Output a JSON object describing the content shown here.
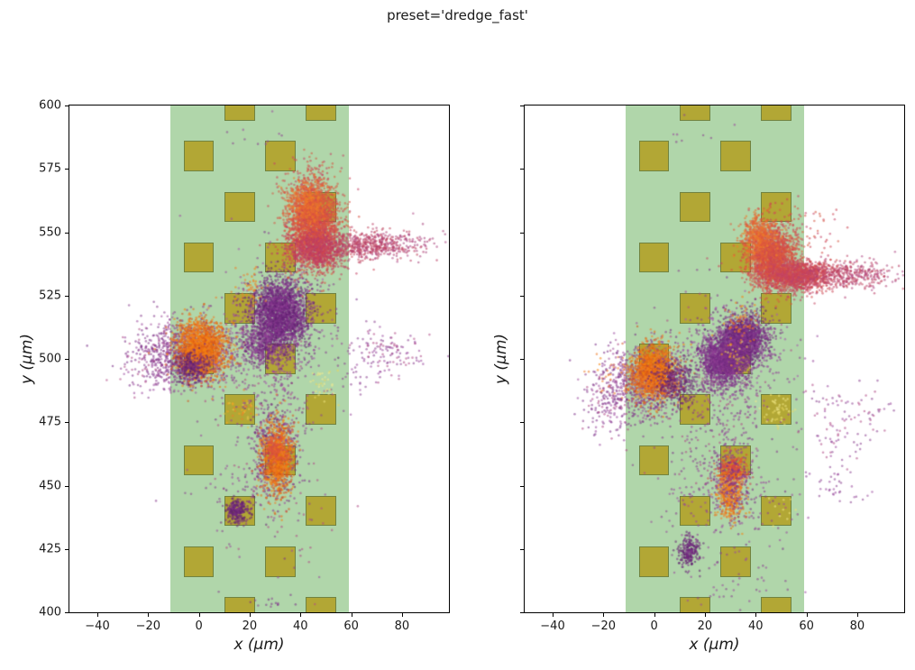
{
  "title": "preset='dredge_fast'",
  "colors": {
    "background": "#ffffff",
    "band": "#b0d6aa",
    "contact_fill": "#b2a735",
    "contact_edge": "#71823f",
    "spine": "#000000"
  },
  "chart_data": [
    {
      "type": "scatter",
      "panel": "left",
      "title": "",
      "xlabel": "x (μm)",
      "ylabel": "y (μm)",
      "xlim": [
        -51,
        98.5
      ],
      "ylim": [
        400,
        600
      ],
      "xticks": [
        -40,
        -20,
        0,
        20,
        40,
        60,
        80
      ],
      "yticks": [
        400,
        425,
        450,
        475,
        500,
        525,
        550,
        575,
        600
      ],
      "show_ytick_labels": true,
      "grid": false,
      "probe": {
        "band_x": [
          -11.4,
          59.2
        ],
        "contact_size": 12,
        "contacts": [
          [
            16,
            600
          ],
          [
            48,
            600
          ],
          [
            0,
            580
          ],
          [
            32,
            580
          ],
          [
            16,
            560
          ],
          [
            48,
            560
          ],
          [
            0,
            540
          ],
          [
            32,
            540
          ],
          [
            16,
            520
          ],
          [
            48,
            520
          ],
          [
            0,
            500
          ],
          [
            32,
            500
          ],
          [
            16,
            480
          ],
          [
            48,
            480
          ],
          [
            0,
            460
          ],
          [
            32,
            460
          ],
          [
            16,
            440
          ],
          [
            48,
            440
          ],
          [
            0,
            420
          ],
          [
            32,
            420
          ],
          [
            16,
            400
          ],
          [
            48,
            400
          ]
        ]
      },
      "clusters": [
        {
          "name": "band-sprinkle-mid",
          "cx": 30,
          "cy": 478,
          "sx": 7,
          "sy": 22,
          "n": 300,
          "colors": [
            "#8b4190",
            "#9a4a9e",
            "#7c2f88",
            "#b04a86"
          ]
        },
        {
          "name": "band-sprinkle-wide",
          "cx": 25,
          "cy": 470,
          "sx": 14,
          "sy": 30,
          "n": 150,
          "colors": [
            "#8b4190",
            "#9a4a9e",
            "#b04a86"
          ]
        },
        {
          "name": "band-sprinkle-upper",
          "cx": 38,
          "cy": 515,
          "sx": 10,
          "sy": 14,
          "n": 80,
          "colors": [
            "#8b4190",
            "#9a4a9e",
            "#7c2f88"
          ]
        },
        {
          "name": "band-sprinkle-low",
          "cx": 18,
          "cy": 448,
          "sx": 8,
          "sy": 6,
          "n": 40,
          "colors": [
            "#8b4190",
            "#9a4a9e"
          ]
        },
        {
          "name": "top-sparse",
          "cx": 24,
          "cy": 588,
          "sx": 10,
          "sy": 6,
          "n": 10,
          "colors": [
            "#8b4190",
            "#9a4a9e"
          ]
        },
        {
          "name": "bottom-arc",
          "cx": 30,
          "cy": 404,
          "sx": 4.5,
          "sy": 2,
          "n": 14,
          "colors": [
            "#8b4190",
            "#7c2f88"
          ]
        },
        {
          "name": "right-cloud",
          "cx": 73,
          "cy": 503,
          "sx": 7,
          "sy": 5,
          "n": 120,
          "colors": [
            "#8b4190",
            "#9a4a9e",
            "#b04a86"
          ]
        },
        {
          "name": "right-cloud-inner",
          "cx": 63,
          "cy": 495,
          "sx": 4,
          "sy": 6,
          "n": 30,
          "colors": [
            "#8b4190",
            "#9a4a9e"
          ]
        },
        {
          "name": "unit1-left-fringe",
          "cx": -16,
          "cy": 501,
          "sx": 7,
          "sy": 7,
          "n": 230,
          "colors": [
            "#8b4190",
            "#9a4a9e",
            "#7c2f88",
            "#b04a86"
          ]
        },
        {
          "name": "unit1-purple-fringe",
          "cx": -3,
          "cy": 502,
          "sx": 10,
          "sy": 7,
          "n": 800,
          "colors": [
            "#8b3c90",
            "#7a2d85",
            "#a4539f"
          ]
        },
        {
          "name": "unit1-orange-core",
          "cx": 1,
          "cy": 504,
          "sx": 5,
          "sy": 5.5,
          "n": 1800,
          "colors": [
            "#f5820d",
            "#e86a12",
            "#ef7d2a",
            "#d4541f"
          ]
        },
        {
          "name": "unit1-dark-spot",
          "cx": -3,
          "cy": 497,
          "sx": 3.5,
          "sy": 3,
          "n": 300,
          "colors": [
            "#5e1f70",
            "#6b2577",
            "#7c2f88"
          ]
        },
        {
          "name": "unit2-streak",
          "cx": 25,
          "cy": 505,
          "sx": 4,
          "sy": 4,
          "n": 350,
          "colors": [
            "#7c2f88",
            "#8e3c94",
            "#6b2577"
          ]
        },
        {
          "name": "unit2-fringe",
          "cx": 30,
          "cy": 513,
          "sx": 9,
          "sy": 11,
          "n": 450,
          "colors": [
            "#9a4a9e",
            "#8b4190",
            "#a85bae"
          ]
        },
        {
          "name": "unit2-purple-core",
          "cx": 32,
          "cy": 518,
          "sx": 5.5,
          "sy": 7,
          "n": 2200,
          "colors": [
            "#7c2f88",
            "#702a7e",
            "#8e3c94",
            "#5e1f70"
          ]
        },
        {
          "name": "orange-speck-527",
          "cx": 21,
          "cy": 527,
          "sx": 3,
          "sy": 5,
          "n": 45,
          "colors": [
            "#f5820d",
            "#ef7d2a"
          ]
        },
        {
          "name": "unit3-sparse-top",
          "cx": 45,
          "cy": 570,
          "sx": 6,
          "sy": 5,
          "n": 140,
          "colors": [
            "#d65a45",
            "#c44466",
            "#cc4452"
          ]
        },
        {
          "name": "unit3-red-core",
          "cx": 45,
          "cy": 552,
          "sx": 5,
          "sy": 8,
          "n": 2400,
          "colors": [
            "#e0593a",
            "#d94f41",
            "#cc4452",
            "#d65a45"
          ]
        },
        {
          "name": "unit3-orange-top",
          "cx": 43,
          "cy": 561,
          "sx": 4,
          "sy": 4.5,
          "n": 600,
          "colors": [
            "#e66a33",
            "#ef7d2a",
            "#e0593a"
          ]
        },
        {
          "name": "unit3-crimson-bottom",
          "cx": 47,
          "cy": 543,
          "sx": 6,
          "sy": 4,
          "n": 800,
          "colors": [
            "#c44466",
            "#cc4452",
            "#b93a62"
          ]
        },
        {
          "name": "unit3-tail",
          "cx": 66,
          "cy": 545,
          "sx": 8,
          "sy": 2.6,
          "n": 450,
          "colors": [
            "#c14b63",
            "#b04073",
            "#bd4668"
          ]
        },
        {
          "name": "unit3-tail-sparse",
          "cx": 80,
          "cy": 545,
          "sx": 8,
          "sy": 3.5,
          "n": 110,
          "colors": [
            "#b04a86",
            "#a8447c",
            "#b93a62"
          ]
        },
        {
          "name": "unit4-purple-mix",
          "cx": 30,
          "cy": 462,
          "sx": 4.5,
          "sy": 9,
          "n": 400,
          "colors": [
            "#7c2f88",
            "#8e3c94",
            "#6b2577"
          ]
        },
        {
          "name": "unit4-orange-core",
          "cx": 31,
          "cy": 461,
          "sx": 3,
          "sy": 7,
          "n": 1000,
          "colors": [
            "#f5820d",
            "#e86a12",
            "#ef7d2a",
            "#d4541f"
          ]
        },
        {
          "name": "unit4-red-top",
          "cx": 30.5,
          "cy": 465,
          "sx": 2.5,
          "sy": 3,
          "n": 150,
          "colors": [
            "#e0593a",
            "#d94f41"
          ]
        },
        {
          "name": "unit5-compact-purple",
          "cx": 15,
          "cy": 440,
          "sx": 2.3,
          "sy": 2.3,
          "n": 260,
          "colors": [
            "#5e1f70",
            "#6b2577",
            "#7c2f88"
          ]
        },
        {
          "name": "pale-yellow-49-490",
          "cx": 49,
          "cy": 490,
          "sx": 3,
          "sy": 4,
          "n": 35,
          "colors": [
            "#ece27b",
            "#f0ea8f",
            "#e8d75e"
          ]
        },
        {
          "name": "yellow-orange-17-480",
          "cx": 17,
          "cy": 480,
          "sx": 4,
          "sy": 3.5,
          "n": 40,
          "colors": [
            "#f5a623",
            "#e8c84a",
            "#ef7d2a"
          ]
        }
      ]
    },
    {
      "type": "scatter",
      "panel": "right",
      "title": "",
      "xlabel": "x (μm)",
      "ylabel": "y (μm)",
      "xlim": [
        -51,
        98.5
      ],
      "ylim": [
        400,
        600
      ],
      "xticks": [
        -40,
        -20,
        0,
        20,
        40,
        60,
        80
      ],
      "yticks": [
        400,
        425,
        450,
        475,
        500,
        525,
        550,
        575,
        600
      ],
      "show_ytick_labels": false,
      "grid": false,
      "probe": {
        "band_x": [
          -11.4,
          59.2
        ],
        "contact_size": 12,
        "contacts": [
          [
            16,
            600
          ],
          [
            48,
            600
          ],
          [
            0,
            580
          ],
          [
            32,
            580
          ],
          [
            16,
            560
          ],
          [
            48,
            560
          ],
          [
            0,
            540
          ],
          [
            32,
            540
          ],
          [
            16,
            520
          ],
          [
            48,
            520
          ],
          [
            0,
            500
          ],
          [
            32,
            500
          ],
          [
            16,
            480
          ],
          [
            48,
            480
          ],
          [
            0,
            460
          ],
          [
            32,
            460
          ],
          [
            16,
            440
          ],
          [
            48,
            440
          ],
          [
            0,
            420
          ],
          [
            32,
            420
          ],
          [
            16,
            400
          ],
          [
            48,
            400
          ]
        ]
      },
      "clusters": [
        {
          "name": "band-sprinkle-mid",
          "cx": 27,
          "cy": 472,
          "sx": 9,
          "sy": 22,
          "n": 280,
          "colors": [
            "#8b4190",
            "#9a4a9e",
            "#7c2f88",
            "#b04a86"
          ]
        },
        {
          "name": "band-sprinkle-wide",
          "cx": 25,
          "cy": 490,
          "sx": 15,
          "sy": 18,
          "n": 180,
          "colors": [
            "#8b4190",
            "#9a4a9e",
            "#b04a86"
          ]
        },
        {
          "name": "band-sprinkle-low",
          "cx": 20,
          "cy": 443,
          "sx": 11,
          "sy": 10,
          "n": 100,
          "colors": [
            "#8b4190",
            "#9a4a9e"
          ]
        },
        {
          "name": "band-sprinkle-low2",
          "cx": 42,
          "cy": 442,
          "sx": 8,
          "sy": 9,
          "n": 60,
          "colors": [
            "#8b4190",
            "#9a4a9e",
            "#7c2f88"
          ]
        },
        {
          "name": "bottom-sparse",
          "cx": 30,
          "cy": 410,
          "sx": 12,
          "sy": 5,
          "n": 35,
          "colors": [
            "#8b4190",
            "#9a4a9e"
          ]
        },
        {
          "name": "top-sparse",
          "cx": 18,
          "cy": 587,
          "sx": 10,
          "sy": 6,
          "n": 8,
          "colors": [
            "#8b4190",
            "#9a4a9e"
          ]
        },
        {
          "name": "right-cloud",
          "cx": 71,
          "cy": 473,
          "sx": 8,
          "sy": 8,
          "n": 85,
          "colors": [
            "#8b4190",
            "#9a4a9e",
            "#b04a86"
          ]
        },
        {
          "name": "right-cloud-far",
          "cx": 86,
          "cy": 480,
          "sx": 5,
          "sy": 6,
          "n": 20,
          "colors": [
            "#8b4190",
            "#b04a86"
          ]
        },
        {
          "name": "right-cloud-low",
          "cx": 70,
          "cy": 448,
          "sx": 7,
          "sy": 6,
          "n": 35,
          "colors": [
            "#8b4190",
            "#9a4a9e"
          ]
        },
        {
          "name": "unit1-left-fringe",
          "cx": -17,
          "cy": 486,
          "sx": 5.5,
          "sy": 8,
          "n": 210,
          "colors": [
            "#8b4190",
            "#9a4a9e",
            "#7c2f88",
            "#b04a86"
          ]
        },
        {
          "name": "unit1-left-fringe-orange",
          "cx": -19,
          "cy": 494,
          "sx": 4,
          "sy": 4,
          "n": 25,
          "colors": [
            "#f5820d",
            "#ef7d2a"
          ]
        },
        {
          "name": "unit1-purple-fringe",
          "cx": -3,
          "cy": 491,
          "sx": 8,
          "sy": 7.5,
          "n": 650,
          "colors": [
            "#8b3c90",
            "#7a2d85",
            "#a4539f"
          ]
        },
        {
          "name": "unit1-orange-core",
          "cx": 0,
          "cy": 494,
          "sx": 4.5,
          "sy": 5,
          "n": 1600,
          "colors": [
            "#f5820d",
            "#e86a12",
            "#ef7d2a",
            "#d4541f"
          ]
        },
        {
          "name": "unit1-dark-middle",
          "cx": 8,
          "cy": 491,
          "sx": 4,
          "sy": 4.5,
          "n": 350,
          "colors": [
            "#5e1f70",
            "#6b2577",
            "#7c2f88"
          ]
        },
        {
          "name": "unit2-fringe",
          "cx": 31,
          "cy": 503,
          "sx": 9,
          "sy": 8,
          "n": 550,
          "colors": [
            "#9a4a9e",
            "#8b4190",
            "#a85bae"
          ]
        },
        {
          "name": "unit2-purple-a",
          "cx": 35,
          "cy": 508,
          "sx": 4.5,
          "sy": 4.5,
          "n": 1500,
          "colors": [
            "#7c2f88",
            "#702a7e",
            "#8e3c94",
            "#5e1f70"
          ]
        },
        {
          "name": "unit2-purple-b",
          "cx": 27,
          "cy": 499,
          "sx": 4.5,
          "sy": 4.5,
          "n": 1400,
          "colors": [
            "#7c2f88",
            "#702a7e",
            "#8e3c94"
          ]
        },
        {
          "name": "unit2-yellow-speck",
          "cx": 32,
          "cy": 501,
          "sx": 3,
          "sy": 3,
          "n": 25,
          "colors": [
            "#ece27b",
            "#e8c84a",
            "#f5a623"
          ]
        },
        {
          "name": "unit2-orange-speck-top",
          "cx": 34,
          "cy": 514,
          "sx": 4,
          "sy": 3.5,
          "n": 60,
          "colors": [
            "#f5820d",
            "#ef7d2a"
          ]
        },
        {
          "name": "unit3-sparse",
          "cx": 52,
          "cy": 548,
          "sx": 9,
          "sy": 7,
          "n": 170,
          "colors": [
            "#d65a45",
            "#c44466",
            "#cc4452"
          ]
        },
        {
          "name": "unit3-red-core",
          "cx": 46,
          "cy": 540,
          "sx": 4.5,
          "sy": 6,
          "n": 2000,
          "colors": [
            "#e0593a",
            "#d94f41",
            "#cc4452",
            "#d65a45"
          ]
        },
        {
          "name": "unit3-orange-arm",
          "cx": 41,
          "cy": 548,
          "sx": 3.5,
          "sy": 4.5,
          "n": 500,
          "colors": [
            "#e66a33",
            "#ef7d2a",
            "#e0593a"
          ]
        },
        {
          "name": "unit3-dense-bar",
          "cx": 57,
          "cy": 533,
          "sx": 6.5,
          "sy": 3,
          "n": 1400,
          "colors": [
            "#c44466",
            "#cc4452",
            "#d4504a",
            "#c54560"
          ]
        },
        {
          "name": "unit3-tail",
          "cx": 73,
          "cy": 533,
          "sx": 8,
          "sy": 2.5,
          "n": 300,
          "colors": [
            "#c14b63",
            "#b04073",
            "#bd4668"
          ]
        },
        {
          "name": "unit3-tail-sparse",
          "cx": 85,
          "cy": 534,
          "sx": 7,
          "sy": 3,
          "n": 80,
          "colors": [
            "#b04a86",
            "#a8447c",
            "#b93a62"
          ]
        },
        {
          "name": "unit4-red-compact",
          "cx": 31,
          "cy": 456,
          "sx": 2.6,
          "sy": 3,
          "n": 350,
          "colors": [
            "#d94840",
            "#cc3f4e",
            "#e0593a"
          ]
        },
        {
          "name": "unit4-orange-tail",
          "cx": 30,
          "cy": 447,
          "sx": 2.6,
          "sy": 5,
          "n": 420,
          "colors": [
            "#f5820d",
            "#e86a12",
            "#ef7d2a"
          ]
        },
        {
          "name": "unit4-purple-mix",
          "cx": 31,
          "cy": 452,
          "sx": 4,
          "sy": 6.5,
          "n": 200,
          "colors": [
            "#7c2f88",
            "#8e3c94"
          ]
        },
        {
          "name": "unit5-compact-purple",
          "cx": 13.5,
          "cy": 424,
          "sx": 2.2,
          "sy": 3,
          "n": 220,
          "colors": [
            "#5e1f70",
            "#6b2577",
            "#7c2f88"
          ]
        },
        {
          "name": "pale-yellow-49-479",
          "cx": 49,
          "cy": 479,
          "sx": 3.2,
          "sy": 3.5,
          "n": 45,
          "colors": [
            "#ece27b",
            "#f0ea8f",
            "#e8d75e"
          ]
        },
        {
          "name": "pale-yellow-51-441",
          "cx": 51,
          "cy": 441,
          "sx": 4,
          "sy": 3,
          "n": 10,
          "colors": [
            "#ece27b",
            "#f0ea8f"
          ]
        }
      ]
    }
  ]
}
